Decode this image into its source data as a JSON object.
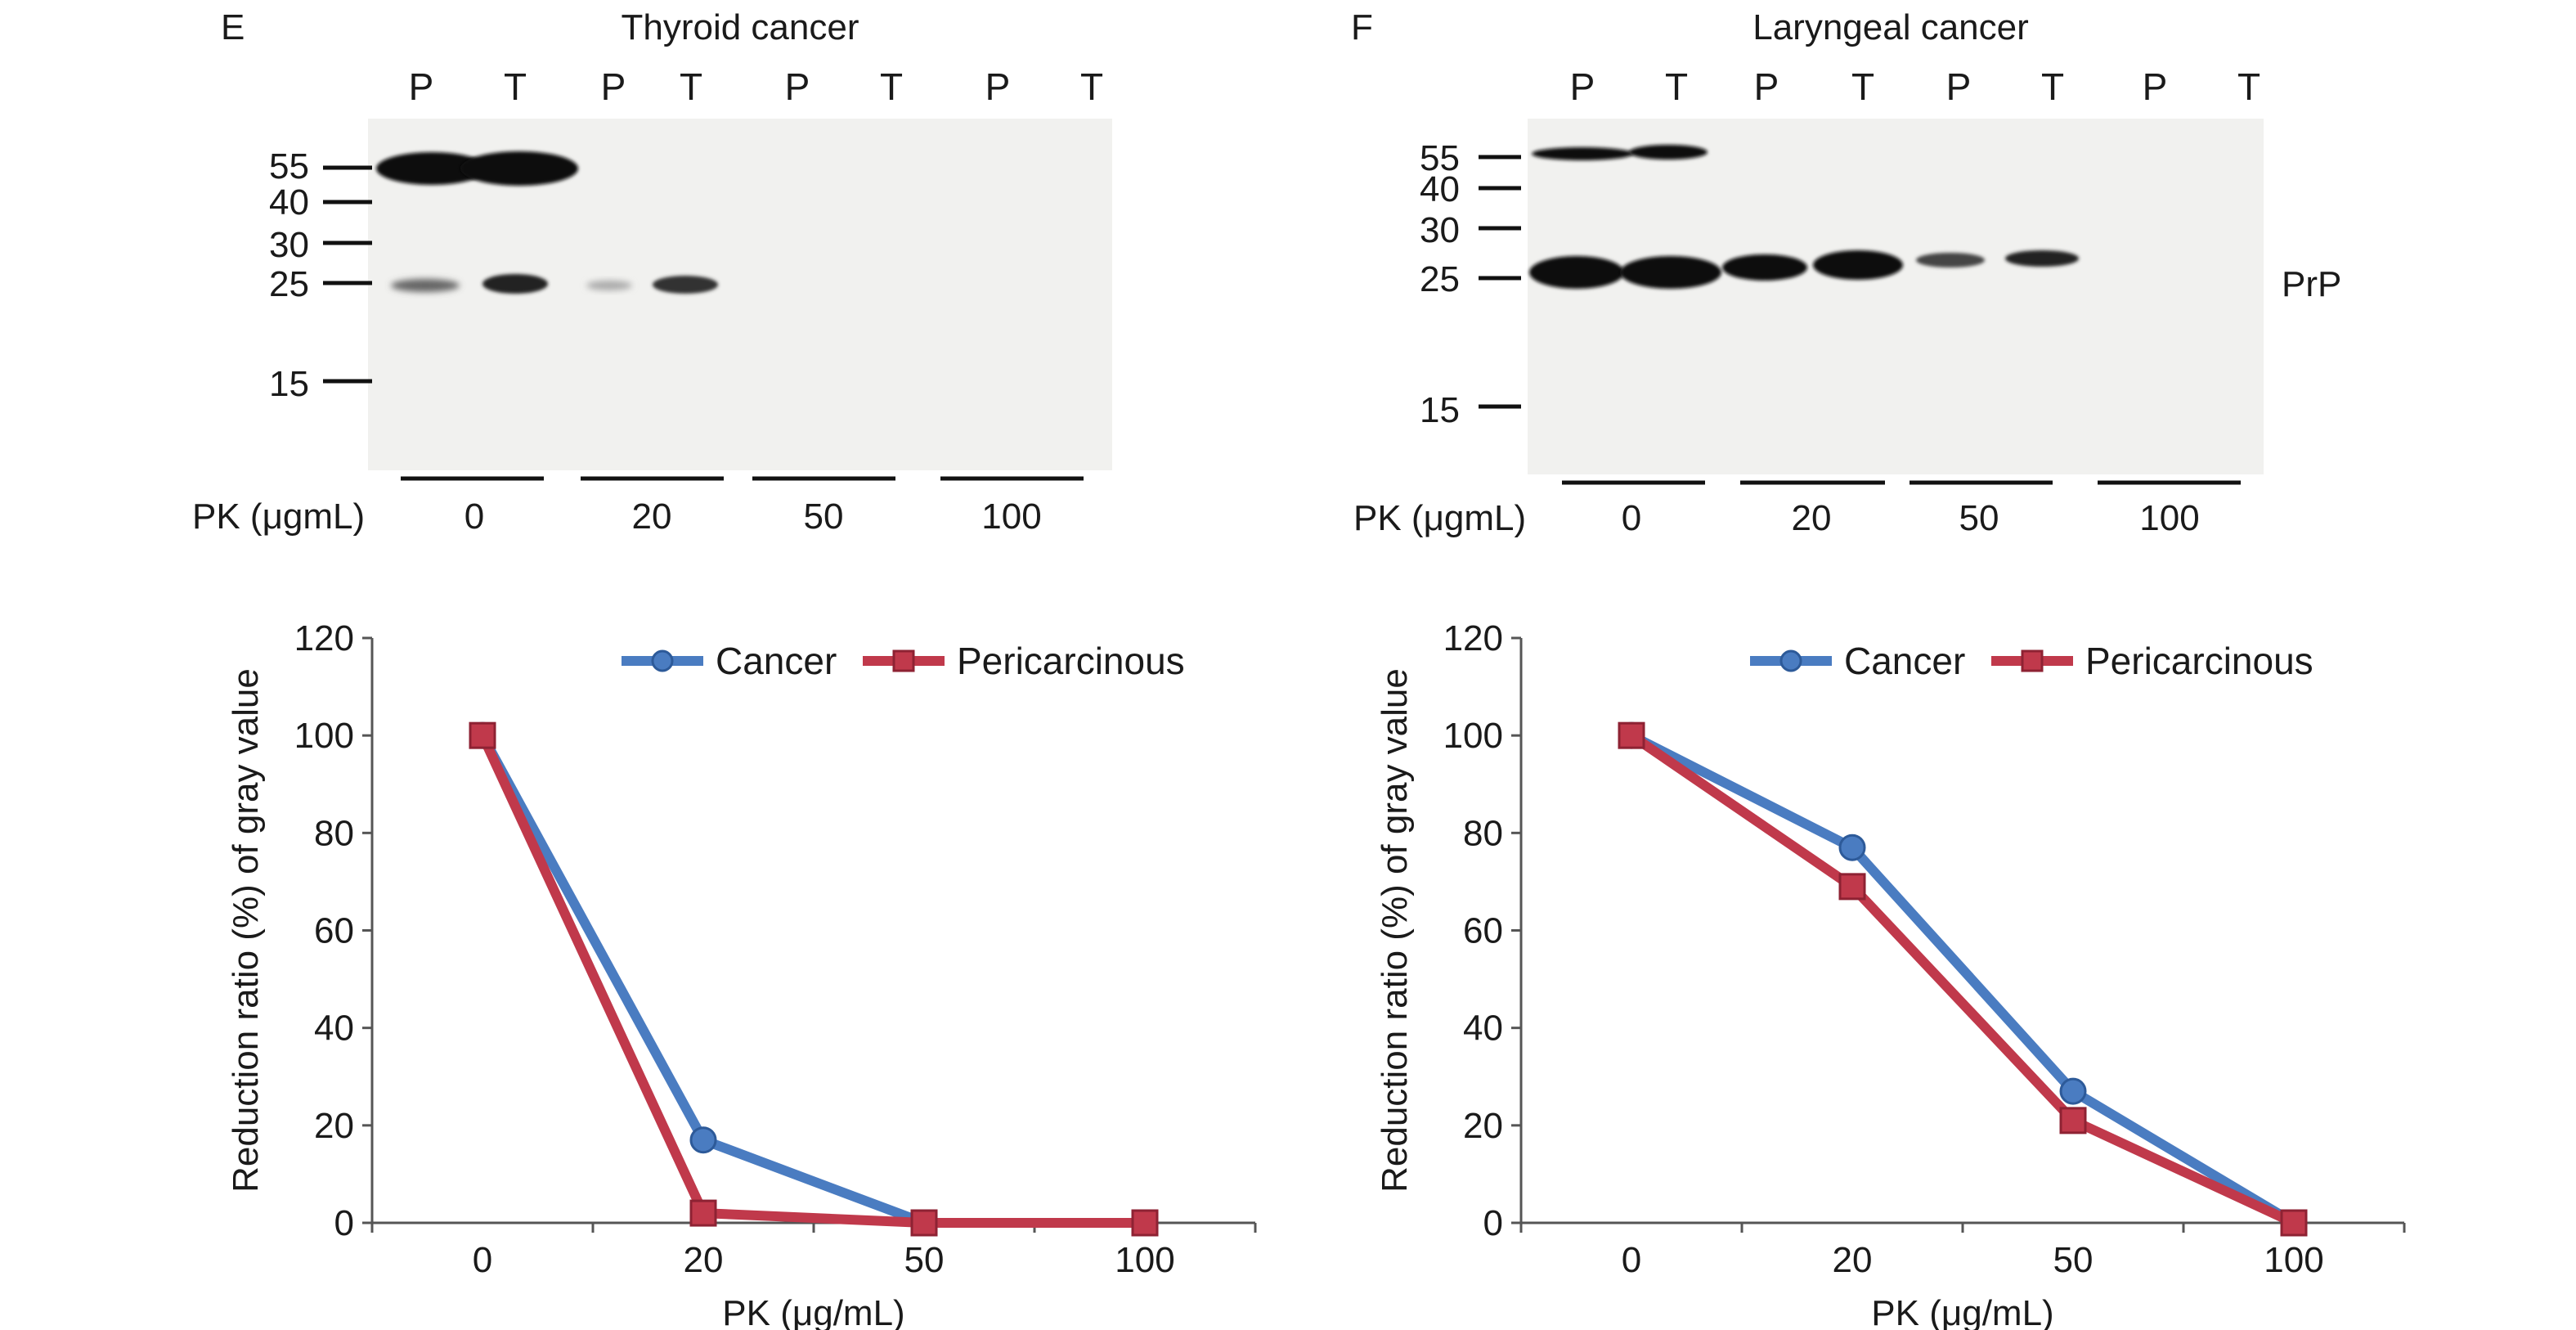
{
  "panel_e": {
    "letter": "E",
    "title": "Thyroid cancer",
    "lanes": [
      "P",
      "T",
      "P",
      "T",
      "P",
      "T",
      "P",
      "T"
    ],
    "markers": [
      "55",
      "40",
      "30",
      "25",
      "15"
    ],
    "pk_label": "PK (μgmL)",
    "pk_values": [
      "0",
      "20",
      "50",
      "100"
    ]
  },
  "panel_f": {
    "letter": "F",
    "title": "Laryngeal cancer",
    "lanes": [
      "P",
      "T",
      "P",
      "T",
      "P",
      "T",
      "P",
      "T"
    ],
    "markers": [
      "55",
      "40",
      "30",
      "25",
      "15"
    ],
    "band_label": "PrP",
    "pk_label": "PK (μgmL)",
    "pk_values": [
      "0",
      "20",
      "50",
      "100"
    ]
  },
  "colors": {
    "cancer": "#4a7cc1",
    "pericarcinous": "#c0394b"
  },
  "chart_data": [
    {
      "type": "line",
      "title": "",
      "xlabel": "PK (μg/mL)",
      "ylabel": "Reduction ratio (%) of gray value",
      "categories": [
        "0",
        "20",
        "50",
        "100"
      ],
      "ylim": [
        0,
        120
      ],
      "yticks": [
        "0",
        "20",
        "40",
        "60",
        "80",
        "100",
        "120"
      ],
      "legend": "top-right",
      "series": [
        {
          "name": "Cancer",
          "values": [
            100,
            17,
            0,
            0
          ]
        },
        {
          "name": "Pericarcinous",
          "values": [
            100,
            2,
            0,
            0
          ]
        }
      ]
    },
    {
      "type": "line",
      "title": "",
      "xlabel": "PK (μg/mL)",
      "ylabel": "Reduction ratio (%) of gray value",
      "categories": [
        "0",
        "20",
        "50",
        "100"
      ],
      "ylim": [
        0,
        120
      ],
      "yticks": [
        "0",
        "20",
        "40",
        "60",
        "80",
        "100",
        "120"
      ],
      "legend": "top-right",
      "series": [
        {
          "name": "Cancer",
          "values": [
            100,
            77,
            27,
            0
          ]
        },
        {
          "name": "Pericarcinous",
          "values": [
            100,
            69,
            21,
            0
          ]
        }
      ]
    }
  ]
}
